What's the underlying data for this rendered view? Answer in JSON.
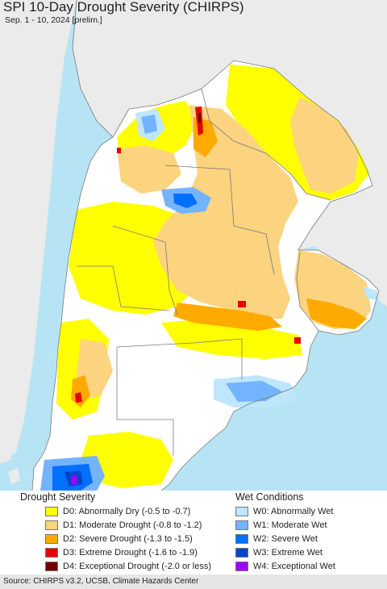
{
  "title": "SPI 10-Day Drought Severity (CHIRPS)",
  "subtitle": "Sep. 1 - 10, 2024 [prelim.]",
  "colors": {
    "ocean": "#b7e4f4",
    "land_outside": "#ebebeb",
    "no_drought": "#ffffff",
    "borders": "#7a7a7a"
  },
  "legend": {
    "drought_heading": "Drought Severity",
    "drought": [
      {
        "code": "D0",
        "label": "D0: Abnormally Dry (-0.5 to -0.7)",
        "color": "#ffff00"
      },
      {
        "code": "D1",
        "label": "D1: Moderate Drought (-0.8 to -1.2)",
        "color": "#fcd37f"
      },
      {
        "code": "D2",
        "label": "D2: Severe Drought (-1.3 to -1.5)",
        "color": "#ffaa00"
      },
      {
        "code": "D3",
        "label": "D3: Extreme Drought (-1.6 to -1.9)",
        "color": "#e60000"
      },
      {
        "code": "D4",
        "label": "D4: Exceptional Drought (-2.0 or less)",
        "color": "#730000"
      }
    ],
    "wet_heading": "Wet Conditions",
    "wet": [
      {
        "code": "W0",
        "label": "W0: Abnormally Wet",
        "color": "#bfe6ff"
      },
      {
        "code": "W1",
        "label": "W1: Moderate Wet",
        "color": "#74b3ff"
      },
      {
        "code": "W2",
        "label": "W2: Severe Wet",
        "color": "#0070ff"
      },
      {
        "code": "W3",
        "label": "W3: Extreme Wet",
        "color": "#0046c8"
      },
      {
        "code": "W4",
        "label": "W4: Exceptional Wet",
        "color": "#a000ff"
      }
    ]
  },
  "source": "Source: CHIRPS v3.2, UCSB, Climate Hazards Center"
}
